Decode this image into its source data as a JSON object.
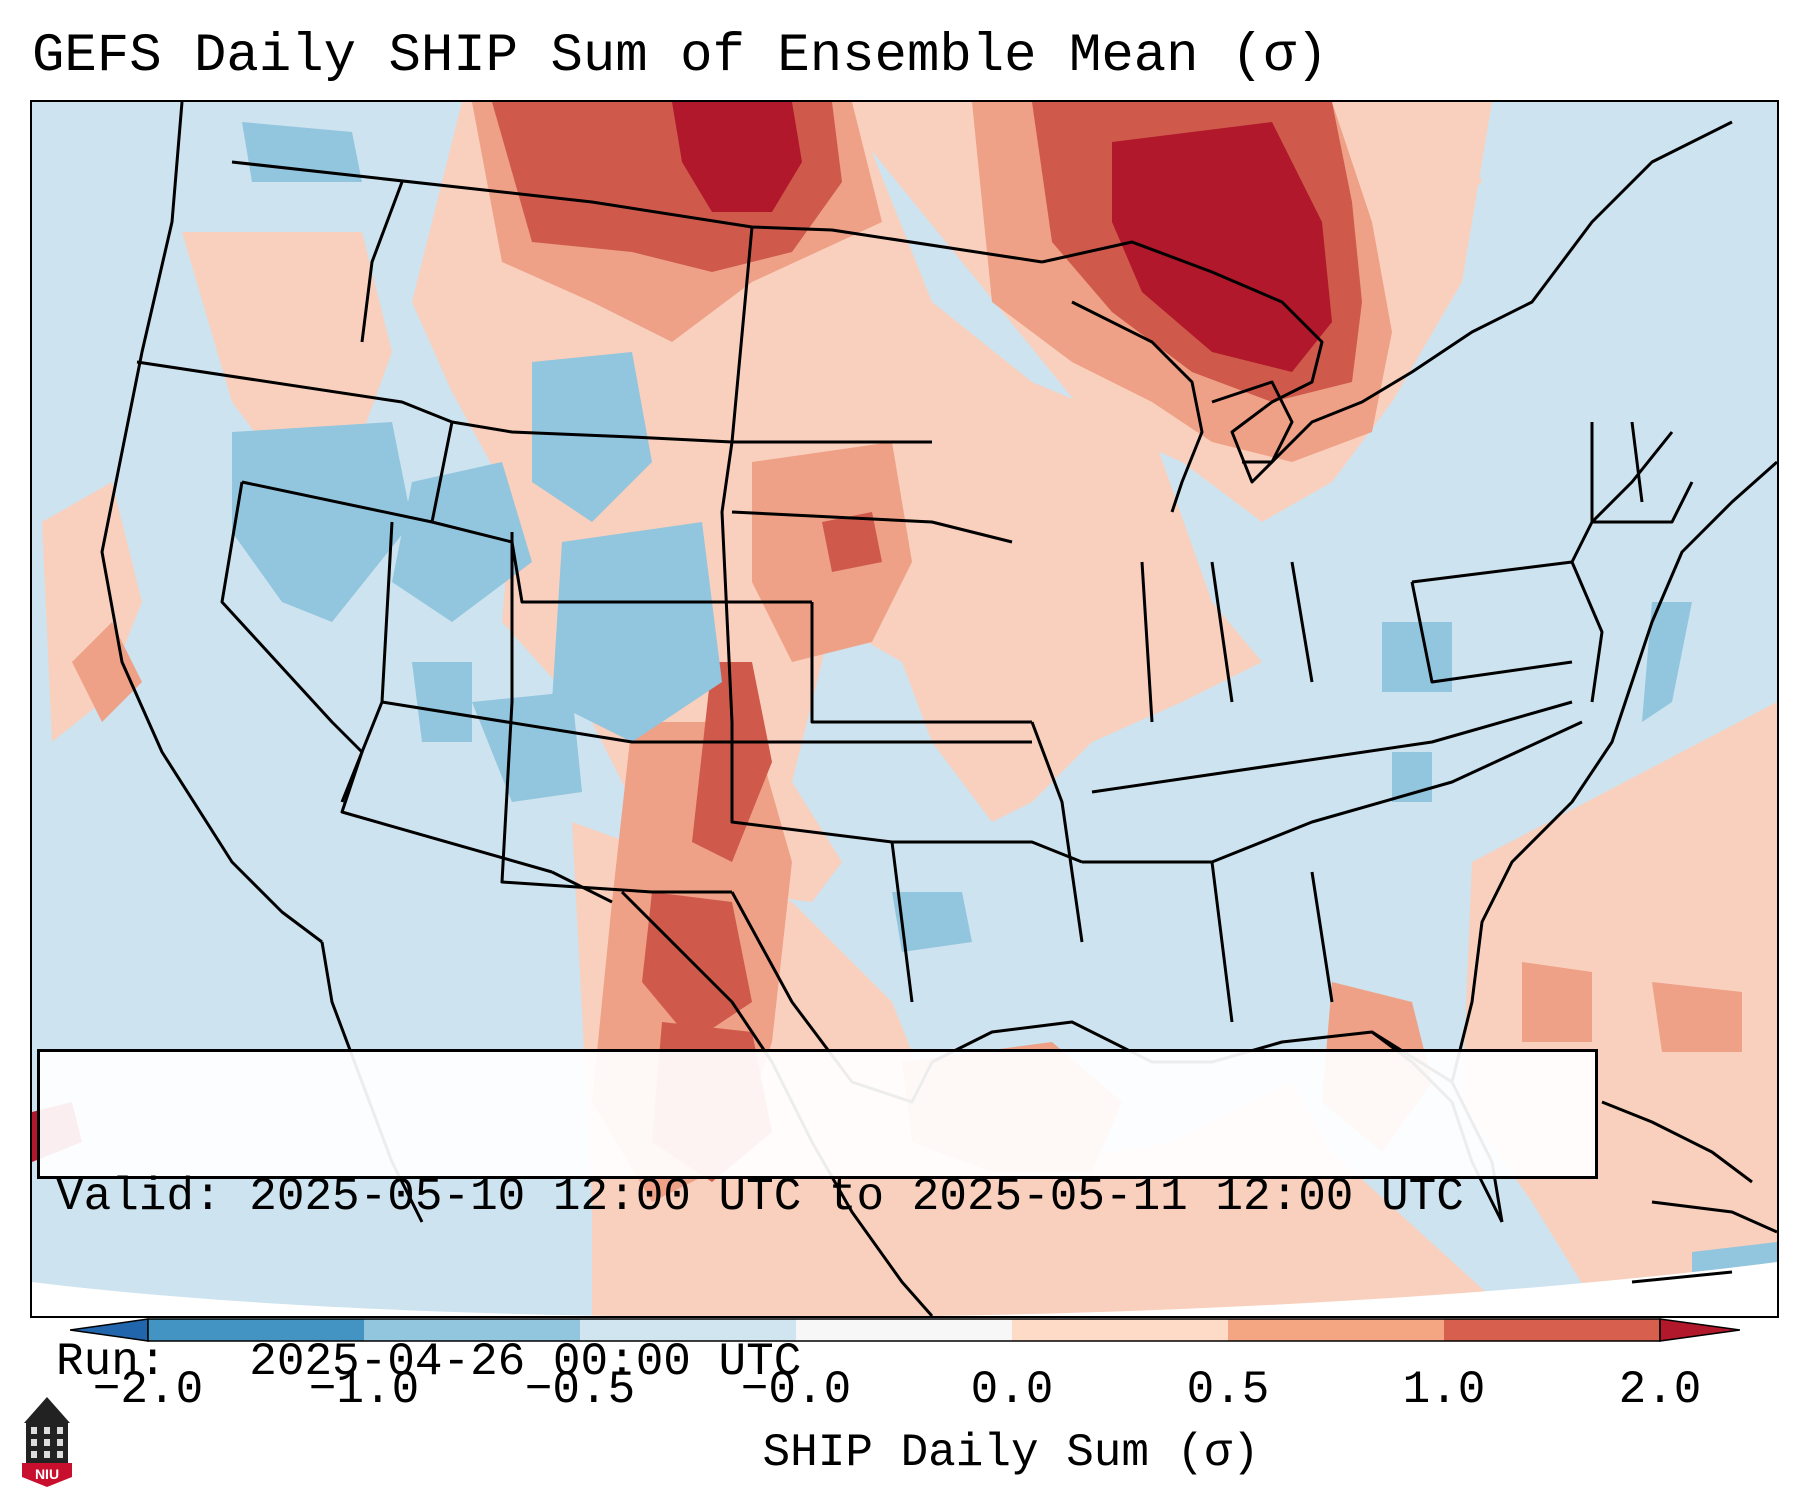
{
  "title": "GEFS Daily SHIP Sum of Ensemble Mean (σ)",
  "info": {
    "valid_label": "Valid: 2025-05-10 12:00 UTC to 2025-05-11 12:00 UTC",
    "run_label": "Run:   2025-04-26 00:00 UTC"
  },
  "colorbar": {
    "label": "SHIP Daily Sum (σ)",
    "ticks": [
      "−2.0",
      "−1.0",
      "−0.5",
      "−0.0",
      "0.0",
      "0.5",
      "1.0",
      "2.0"
    ],
    "segments": [
      {
        "color": "#4393c3"
      },
      {
        "color": "#92c5de"
      },
      {
        "color": "#d1e5f0"
      },
      {
        "color": "#f7f7f7"
      },
      {
        "color": "#fddbc7"
      },
      {
        "color": "#f4a582"
      },
      {
        "color": "#d6604d"
      }
    ],
    "under_color": "#2166ac",
    "over_color": "#b2182b"
  },
  "map": {
    "background_color": "#cde3ef"
  },
  "logo": {
    "text": "NIU",
    "color": "#c8102e"
  }
}
